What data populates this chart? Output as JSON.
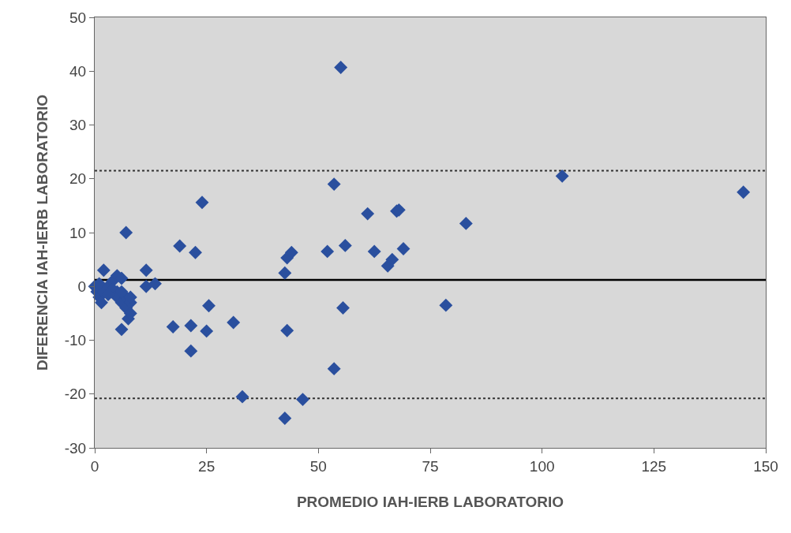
{
  "chart_data": {
    "type": "scatter",
    "xlabel": "PROMEDIO IAH-IERB LABORATORIO",
    "ylabel": "DIFERENCIA IAH-IERB LABORATORIO",
    "x": [
      0,
      0.5,
      1,
      1.5,
      2,
      2,
      3,
      4,
      5,
      5,
      5,
      6,
      6,
      6,
      7,
      7,
      7.5,
      8,
      8,
      7,
      4,
      6,
      3,
      1,
      8,
      11.5,
      11.5,
      13.5,
      17.5,
      19,
      21.5,
      21.5,
      22.5,
      24,
      25,
      25.5,
      31,
      33,
      42.5,
      43,
      43,
      44,
      42.5,
      46.5,
      52,
      53.5,
      53.5,
      55,
      55.5,
      56,
      61,
      62.5,
      65.5,
      66.5,
      67.5,
      68,
      69,
      78.5,
      83,
      104.5,
      145
    ],
    "values": [
      0,
      -1,
      -2,
      -3,
      3,
      -1,
      0,
      1,
      2,
      -1,
      -2,
      1.5,
      -3,
      -8,
      -2,
      -4,
      -6,
      -3,
      -5,
      10,
      -0.5,
      -1,
      -1.5,
      0.5,
      -2,
      3,
      0,
      0.5,
      -7.5,
      7.5,
      -7.3,
      -12,
      6.3,
      15.6,
      -8.3,
      -3.6,
      -6.7,
      -20.5,
      2.5,
      5.3,
      -8.2,
      6.3,
      -24.5,
      -21,
      6.5,
      19,
      -15.3,
      40.7,
      -4,
      7.6,
      13.5,
      6.5,
      3.8,
      5,
      14,
      14.2,
      7,
      -3.5,
      11.7,
      20.5,
      17.5
    ],
    "color": "#2a4f9e",
    "marker": "diamond",
    "xlim": [
      0,
      150
    ],
    "xticks": [
      0,
      25,
      50,
      75,
      100,
      125,
      150
    ],
    "ylim": [
      -30,
      50
    ],
    "yticks": [
      -30,
      -20,
      -10,
      0,
      10,
      20,
      30,
      40,
      50
    ],
    "grid": false,
    "ref_lines": [
      {
        "axis": "y",
        "value": 1.2,
        "color": "#000000",
        "line_style": "solid"
      },
      {
        "axis": "y",
        "value": 21.5,
        "color": "#333333",
        "line_style": "dotted"
      },
      {
        "axis": "y",
        "value": -20.8,
        "color": "#333333",
        "line_style": "dotted"
      }
    ]
  }
}
